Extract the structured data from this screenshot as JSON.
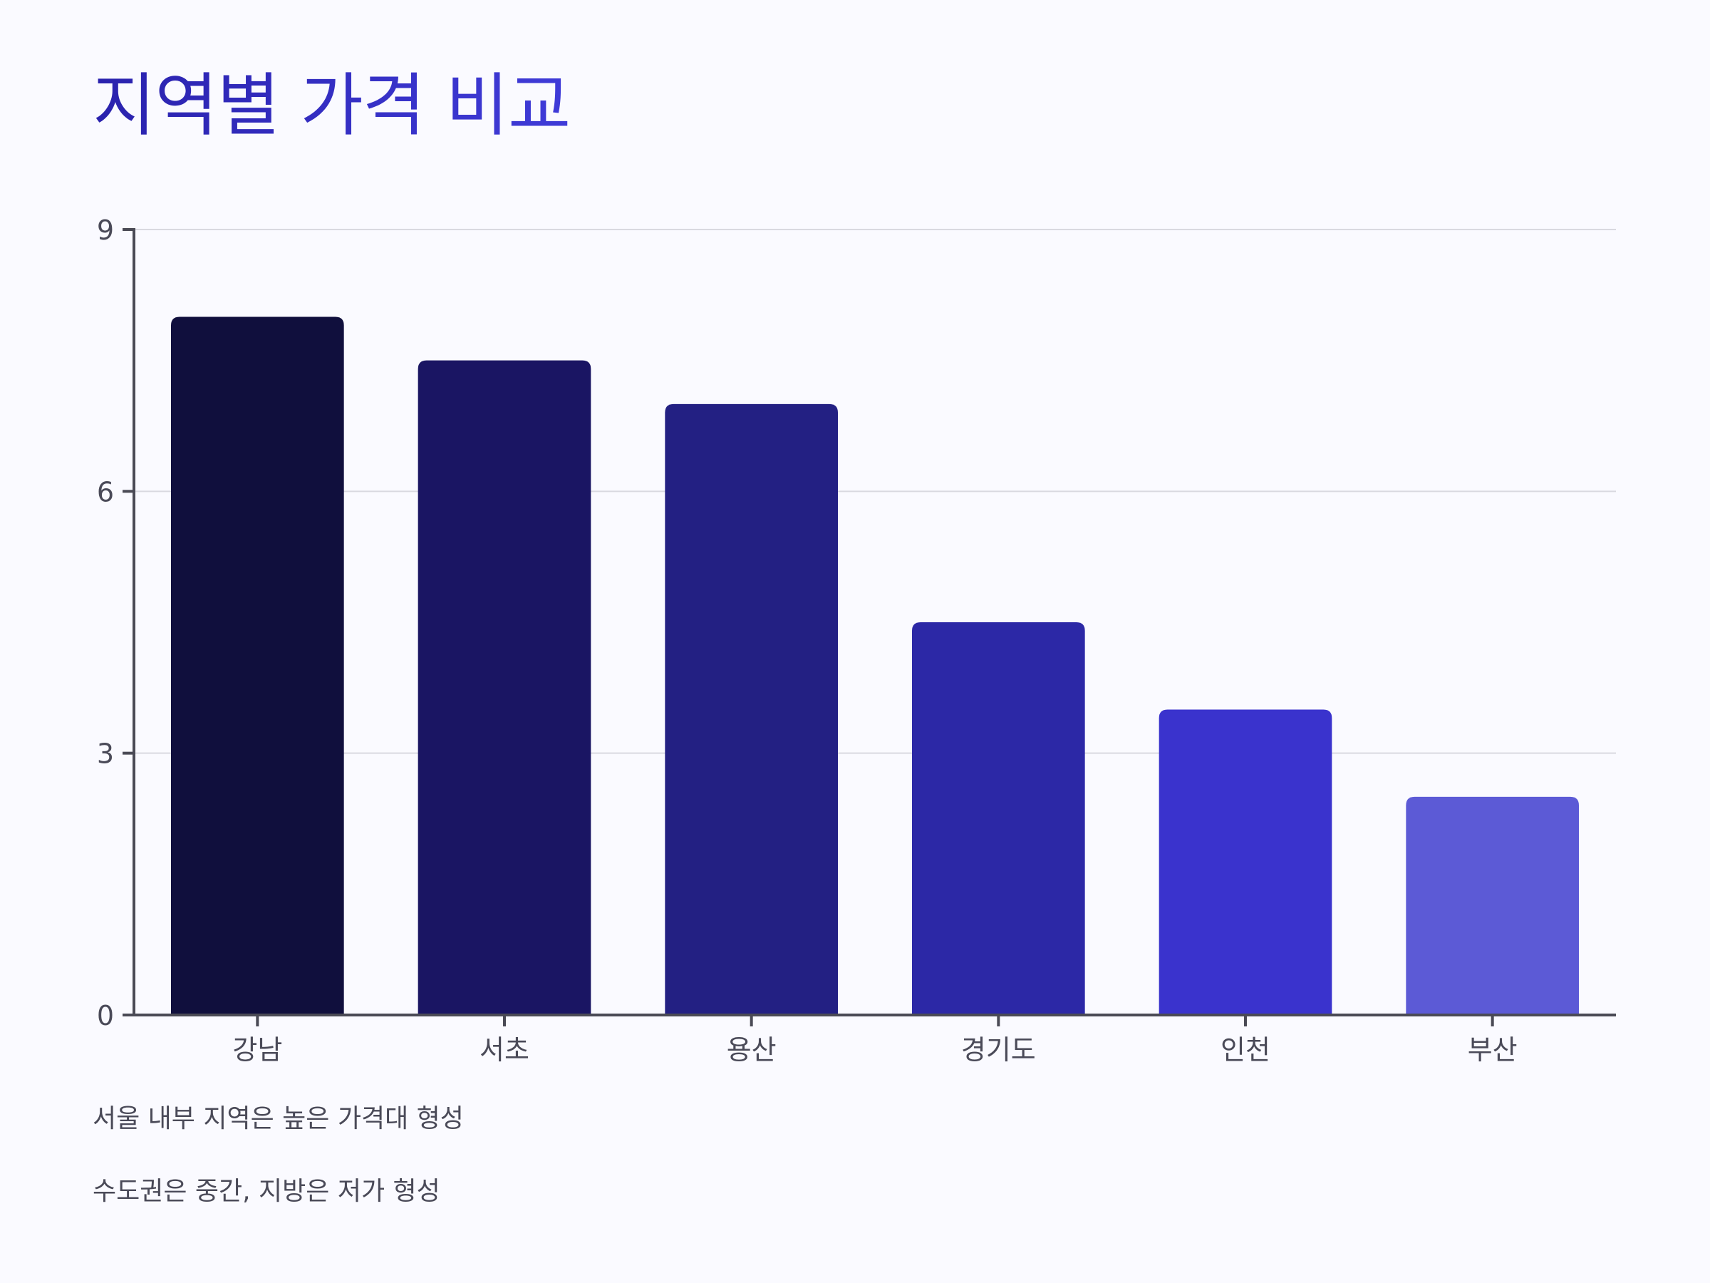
{
  "title": "지역별 가격 비교",
  "notes": [
    "서울 내부 지역은 높은 가격대 형성",
    "수도권은 중간, 지방은 저가 형성"
  ],
  "chart_data": {
    "type": "bar",
    "title": "지역별 가격 비교",
    "xlabel": "",
    "ylabel": "",
    "categories": [
      "강남",
      "서초",
      "용산",
      "경기도",
      "인천",
      "부산"
    ],
    "values": [
      8,
      7.5,
      7,
      4.5,
      3.5,
      2.5
    ],
    "ylim": [
      0,
      9
    ],
    "yticks": [
      0,
      3,
      6,
      9
    ],
    "grid": true,
    "colors": [
      "#100f3d",
      "#1a1563",
      "#232083",
      "#2c28a6",
      "#3a33cd",
      "#5c5ad6"
    ],
    "grid_color": "#d9d9e0",
    "axis_color": "#4a4a55"
  }
}
